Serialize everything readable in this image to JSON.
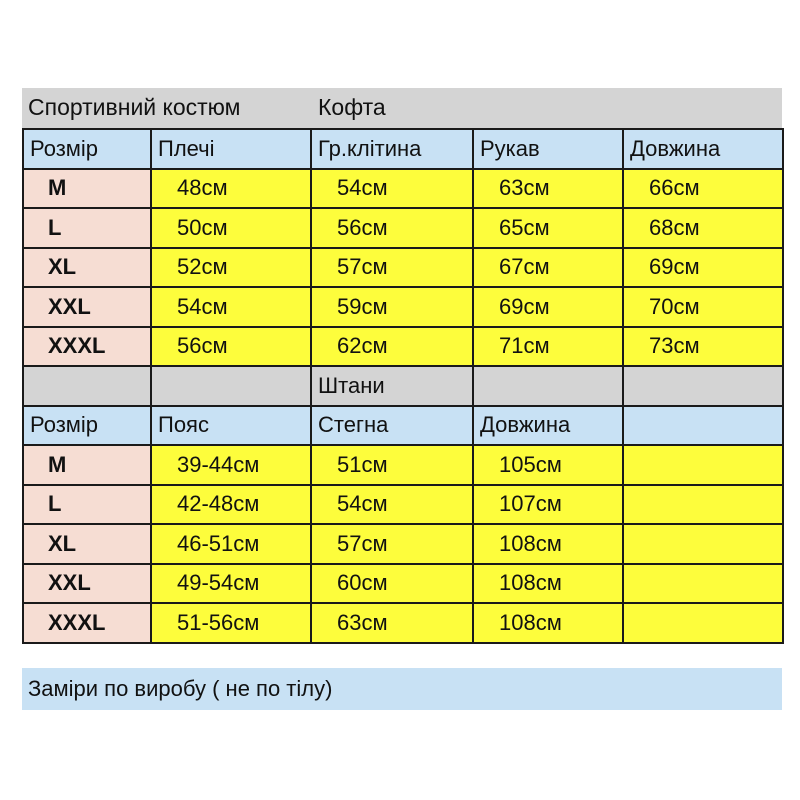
{
  "title": {
    "left": "Спортивний костюм",
    "right": "Кофта"
  },
  "jacket": {
    "headers": [
      "Розмір",
      "Плечі",
      "Гр.клітина",
      "Рукав",
      "Довжина"
    ],
    "rows": [
      [
        "M",
        "48см",
        "54см",
        "63см",
        "66см"
      ],
      [
        "L",
        "50см",
        "56см",
        "65см",
        "68см"
      ],
      [
        "XL",
        "52см",
        "57см",
        "67см",
        "69см"
      ],
      [
        "XXL",
        "54см",
        "59см",
        "69см",
        "70см"
      ],
      [
        "XXXL",
        "56см",
        "62см",
        "71см",
        "73см"
      ]
    ]
  },
  "pants_section": {
    "label": "Штани"
  },
  "pants": {
    "headers": [
      "Розмір",
      "Пояс",
      "Стегна",
      "Довжина",
      ""
    ],
    "rows": [
      [
        "M",
        "39-44см",
        "51см",
        "105см",
        ""
      ],
      [
        "L",
        "42-48см",
        "54см",
        "107см",
        ""
      ],
      [
        "XL",
        "46-51см",
        "57см",
        "108см",
        ""
      ],
      [
        "XXL",
        "49-54см",
        "60см",
        "108см",
        ""
      ],
      [
        "XXXL",
        "51-56см",
        "63см",
        "108см",
        ""
      ]
    ]
  },
  "footer": {
    "note": "Заміри по виробу ( не по тілу)"
  },
  "colors": {
    "header": "#c8e1f4",
    "size_cell": "#f6ddd3",
    "value_cell": "#fdfd3c",
    "section": "#d4d4d4"
  }
}
